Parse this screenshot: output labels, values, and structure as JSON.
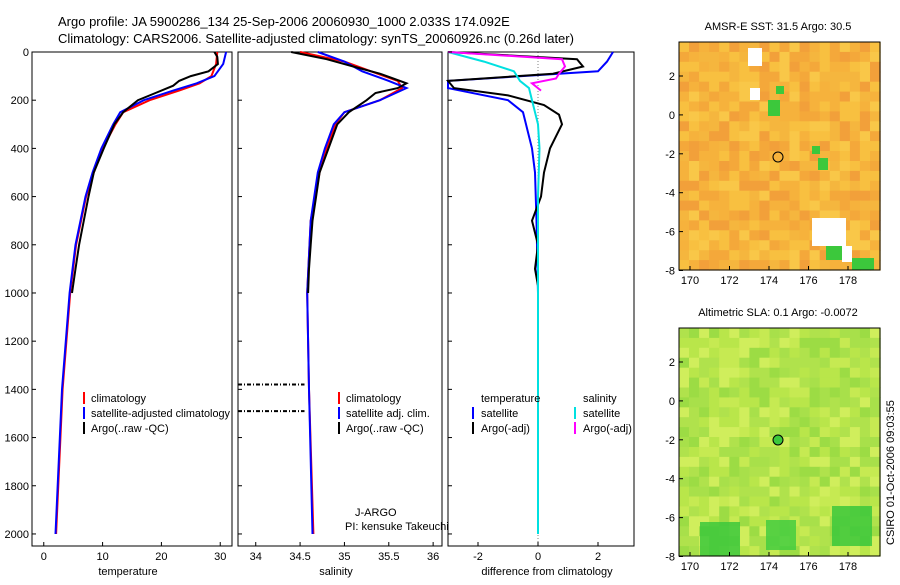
{
  "header": {
    "line1": "Argo profile: JA 5900286_134 25-Sep-2006 20060930_1000 2.033S 174.092E",
    "line2": "Climatology: CARS2006. Satellite-adjusted climatology: synTS_20060926.nc (0.26d later)"
  },
  "colors": {
    "climatology": "#ff0000",
    "satellite": "#0000ff",
    "argo": "#000000",
    "sal_satellite": "#00e0e0",
    "sal_argo": "#ff00ff",
    "sst_base": "#f6b23c",
    "sla_base": "#b9e64a",
    "green": "#3cc83c"
  },
  "chart_data": [
    {
      "type": "line",
      "id": "temperature",
      "xlabel": "temperature",
      "ylabel": "",
      "xlim": [
        -2,
        32
      ],
      "ylim": [
        2050,
        0
      ],
      "xticks": [
        0,
        10,
        20,
        30
      ],
      "yticks": [
        0,
        200,
        400,
        600,
        800,
        1000,
        1200,
        1400,
        1600,
        1800,
        2000
      ],
      "legend": [
        "climatology",
        "satellite-adjusted climatology",
        "Argo(..raw -QC)"
      ],
      "series": [
        {
          "name": "climatology",
          "color": "#ff0000",
          "depth": [
            0,
            50,
            100,
            130,
            160,
            200,
            250,
            300,
            400,
            500,
            600,
            800,
            1000,
            1400,
            2000
          ],
          "values": [
            29.5,
            29.3,
            28.5,
            26.5,
            23.0,
            18.0,
            13.5,
            12.2,
            10.0,
            8.5,
            7.2,
            5.5,
            4.5,
            3.2,
            2.1
          ]
        },
        {
          "name": "satellite-adjusted climatology",
          "color": "#0000ff",
          "depth": [
            0,
            50,
            100,
            130,
            160,
            200,
            250,
            300,
            400,
            500,
            600,
            800,
            1000,
            1400,
            2000
          ],
          "values": [
            31.0,
            30.5,
            29.0,
            26.0,
            22.0,
            17.0,
            13.0,
            11.8,
            9.8,
            8.3,
            7.1,
            5.4,
            4.4,
            3.1,
            2.0
          ]
        },
        {
          "name": "Argo(..raw -QC)",
          "color": "#000000",
          "depth": [
            0,
            20,
            50,
            80,
            100,
            120,
            140,
            170,
            200,
            250,
            300,
            400,
            500,
            600,
            700,
            800,
            900,
            1000
          ],
          "values": [
            29.0,
            29.5,
            29.6,
            28.0,
            25.0,
            23.0,
            22.0,
            19.0,
            16.0,
            13.5,
            12.0,
            10.2,
            8.5,
            7.6,
            6.8,
            6.0,
            5.4,
            4.8
          ]
        }
      ]
    },
    {
      "type": "line",
      "id": "salinity",
      "xlabel": "salinity",
      "xlim": [
        33.8,
        36.1
      ],
      "ylim": [
        2050,
        0
      ],
      "xticks": [
        34,
        34.5,
        35,
        35.5,
        36
      ],
      "legend": [
        "climatology",
        "satellite adj. clim.",
        "Argo(..raw -QC)"
      ],
      "annotations": [
        "J-ARGO",
        "PI: kensuke Takeuchi"
      ],
      "series": [
        {
          "name": "climatology",
          "color": "#ff0000",
          "depth": [
            0,
            40,
            80,
            120,
            150,
            200,
            250,
            300,
            400,
            500,
            700,
            1000,
            1400,
            2000
          ],
          "values": [
            34.5,
            35.0,
            35.3,
            35.6,
            35.65,
            35.4,
            35.0,
            34.9,
            34.8,
            34.72,
            34.62,
            34.58,
            34.6,
            34.65
          ]
        },
        {
          "name": "satellite adj. clim.",
          "color": "#0000ff",
          "depth": [
            0,
            40,
            80,
            120,
            150,
            200,
            250,
            300,
            400,
            500,
            700,
            1000,
            1400,
            2000
          ],
          "values": [
            34.7,
            35.0,
            35.2,
            35.5,
            35.7,
            35.4,
            35.0,
            34.88,
            34.78,
            34.7,
            34.62,
            34.58,
            34.6,
            34.64
          ]
        },
        {
          "name": "Argo(..raw -QC)",
          "color": "#000000",
          "depth": [
            0,
            30,
            60,
            90,
            110,
            130,
            150,
            170,
            200,
            250,
            300,
            400,
            500,
            600,
            700,
            800,
            900,
            1000
          ],
          "values": [
            34.4,
            34.8,
            35.1,
            35.4,
            35.55,
            35.7,
            35.6,
            35.35,
            35.25,
            35.05,
            34.92,
            34.82,
            34.72,
            34.68,
            34.64,
            34.62,
            34.6,
            34.59
          ]
        },
        {
          "name": "Argo flagged",
          "color": "#000000",
          "depth": [
            1380,
            1380,
            1490,
            1490
          ],
          "values": [
            33.8,
            34.55,
            33.8,
            34.55
          ]
        }
      ]
    },
    {
      "type": "line",
      "id": "difference",
      "xlabel": "difference from climatology",
      "xlim": [
        -3.0,
        3.2
      ],
      "ylim": [
        2050,
        0
      ],
      "xticks": [
        -2,
        0,
        2
      ],
      "legend_left_title": "temperature",
      "legend_right_title": "salinity",
      "legend": [
        "satellite",
        "Argo(-adj)",
        "satellite",
        "Argo(-adj)"
      ],
      "series": [
        {
          "name": "temperature satellite",
          "color": "#0000ff",
          "depth": [
            0,
            40,
            80,
            120,
            150,
            200,
            250,
            300,
            400,
            500,
            700,
            1000,
            2000
          ],
          "values": [
            2.5,
            2.3,
            2.0,
            -3.0,
            -3.0,
            -1.0,
            -0.5,
            -0.4,
            -0.2,
            -0.1,
            -0.05,
            0,
            0
          ]
        },
        {
          "name": "temperature Argo(-adj)",
          "color": "#000000",
          "depth": [
            0,
            30,
            60,
            90,
            120,
            150,
            180,
            220,
            260,
            300,
            350,
            400,
            500,
            600,
            700,
            800,
            900,
            970
          ],
          "values": [
            -3.0,
            1.3,
            1.5,
            0.5,
            -3.0,
            -2.8,
            -1.0,
            0.2,
            0.7,
            0.8,
            0.6,
            0.4,
            0.2,
            0.1,
            -0.2,
            0,
            -0.1,
            0
          ]
        },
        {
          "name": "salinity satellite",
          "color": "#00e0e0",
          "depth": [
            0,
            40,
            80,
            120,
            150,
            200,
            300,
            400,
            600,
            800,
            1000,
            2000
          ],
          "values": [
            -3.0,
            -1.8,
            -0.8,
            -0.6,
            -0.3,
            -0.2,
            0,
            0.05,
            0,
            0,
            0,
            0
          ]
        },
        {
          "name": "salinity Argo(-adj)",
          "color": "#ff00ff",
          "depth": [
            0,
            30,
            60,
            90,
            110,
            130,
            160
          ],
          "values": [
            -3.0,
            0.8,
            0.9,
            0.7,
            0.6,
            -0.2,
            0.1
          ]
        }
      ]
    }
  ],
  "maps": {
    "sst": {
      "title": "AMSR-E SST: 31.5 Argo: 30.5",
      "xticks": [
        "170",
        "172",
        "174",
        "176",
        "178"
      ],
      "yticks": [
        "2",
        "0",
        "-2",
        "-4",
        "-6",
        "-8"
      ]
    },
    "sla": {
      "title": "Altimetric SLA: 0.1 Argo: -0.0072",
      "xticks": [
        "170",
        "172",
        "174",
        "176",
        "178"
      ],
      "yticks": [
        "2",
        "0",
        "-2",
        "-4",
        "-6",
        "-8"
      ]
    }
  },
  "footer": {
    "credit": "CSIRO 01-Oct-2006 09:03:55"
  }
}
